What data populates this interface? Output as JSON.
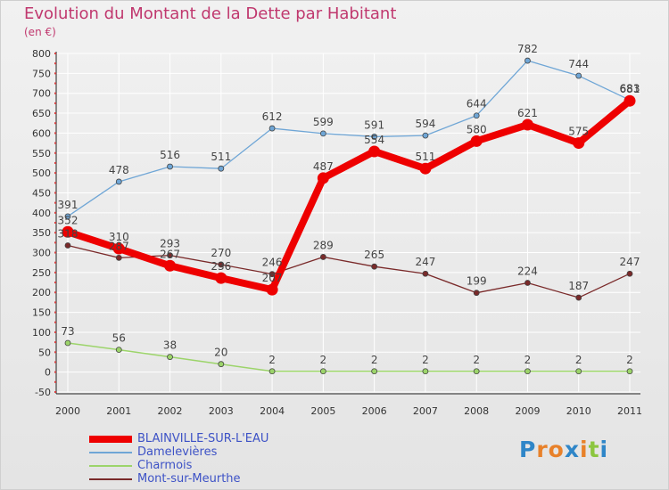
{
  "title": "Evolution du Montant de la Dette par Habitant",
  "unit": "(en €)",
  "logo": {
    "letters": [
      "P",
      "r",
      "o",
      "x",
      "i",
      "t",
      "i"
    ],
    "colors": [
      "#2f86c8",
      "#e8812a",
      "#e8812a",
      "#2f86c8",
      "#e8812a",
      "#8cc63f",
      "#2f86c8"
    ]
  },
  "chart_data": {
    "type": "line",
    "x": [
      "2000",
      "2001",
      "2002",
      "2003",
      "2004",
      "2005",
      "2006",
      "2007",
      "2008",
      "2009",
      "2010",
      "2011"
    ],
    "ylim": [
      -50,
      800
    ],
    "y_ticks": [
      "-50",
      "0",
      "50",
      "100",
      "150",
      "200",
      "250",
      "300",
      "350",
      "400",
      "450",
      "500",
      "550",
      "600",
      "650",
      "700",
      "750",
      "800"
    ],
    "grid": true,
    "legend_position": "bottom-left",
    "series": [
      {
        "name": "BLAINVILLE-SUR-L'EAU",
        "color": "#ee0000",
        "width": 8,
        "values": [
          352,
          310,
          267,
          236,
          207,
          487,
          554,
          511,
          580,
          621,
          575,
          681
        ],
        "labels": [
          "352",
          "310",
          "267",
          "236",
          "207",
          "487",
          "554",
          "511",
          "580",
          "621",
          "575",
          "681"
        ]
      },
      {
        "name": "Damelevières",
        "color": "#6fa6d6",
        "width": 1.3,
        "values": [
          391,
          478,
          516,
          511,
          612,
          599,
          591,
          594,
          644,
          782,
          744,
          683
        ],
        "labels": [
          "391",
          "478",
          "516",
          "511",
          "612",
          "599",
          "591",
          "594",
          "644",
          "782",
          "744",
          "683"
        ]
      },
      {
        "name": "Charmois",
        "color": "#9cd46a",
        "width": 1.5,
        "values": [
          73,
          56,
          38,
          20,
          2,
          2,
          2,
          2,
          2,
          2,
          2,
          2
        ],
        "labels": [
          "73",
          "56",
          "38",
          "20",
          "2",
          "2",
          "2",
          "2",
          "2",
          "2",
          "2",
          "2"
        ]
      },
      {
        "name": "Mont-sur-Meurthe",
        "color": "#7a2a2a",
        "width": 1.3,
        "values": [
          318,
          287,
          293,
          270,
          246,
          289,
          265,
          247,
          199,
          224,
          187,
          247
        ],
        "labels": [
          "318",
          "287",
          "293",
          "270",
          "246",
          "289",
          "265",
          "247",
          "199",
          "224",
          "187",
          "247"
        ]
      }
    ]
  }
}
